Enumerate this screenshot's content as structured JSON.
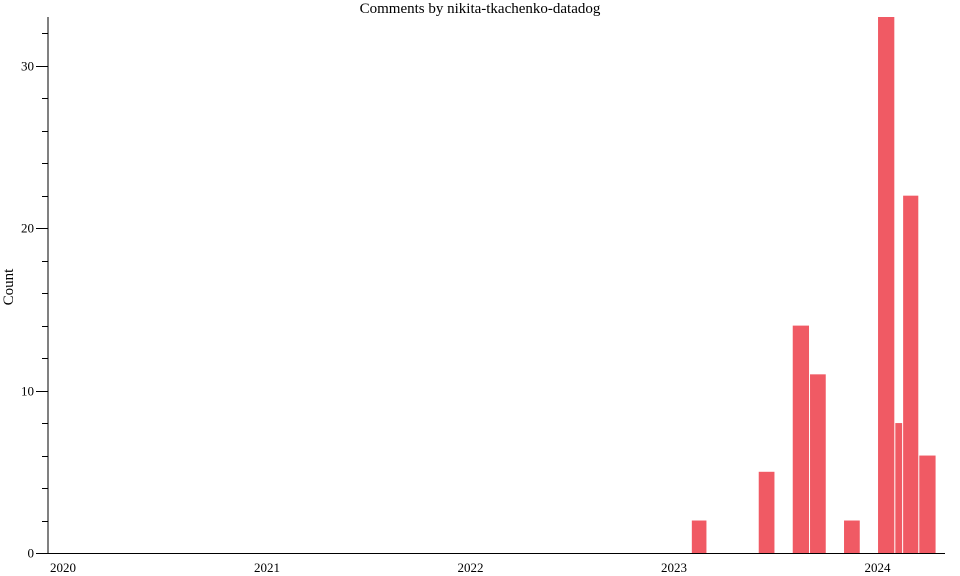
{
  "chart_data": {
    "type": "bar",
    "title": "Comments by nikita-tkachenko-datadog",
    "xlabel": "",
    "ylabel": "Count",
    "x_axis": {
      "type": "time",
      "range": [
        "2020-01-01",
        "2024-05-01"
      ],
      "ticks": [
        "2020",
        "2021",
        "2022",
        "2023",
        "2024"
      ]
    },
    "y_axis": {
      "range": [
        0,
        33
      ],
      "major_ticks": [
        0,
        10,
        20,
        30
      ],
      "minor_step": 2
    },
    "bar_color": "#f05a64",
    "grid": false,
    "legend": "none",
    "bars": [
      {
        "start": "2023-02-01",
        "end": "2023-03-01",
        "count": 2
      },
      {
        "start": "2023-06-01",
        "end": "2023-07-01",
        "count": 5
      },
      {
        "start": "2023-08-01",
        "end": "2023-09-01",
        "count": 14
      },
      {
        "start": "2023-09-01",
        "end": "2023-10-01",
        "count": 11
      },
      {
        "start": "2023-11-01",
        "end": "2023-12-01",
        "count": 2
      },
      {
        "start": "2024-01-01",
        "end": "2024-02-01",
        "count": 33
      },
      {
        "start": "2024-02-01",
        "end": "2024-02-15",
        "count": 8
      },
      {
        "start": "2024-02-15",
        "end": "2024-03-15",
        "count": 22
      },
      {
        "start": "2024-03-15",
        "end": "2024-04-15",
        "count": 6
      }
    ]
  }
}
